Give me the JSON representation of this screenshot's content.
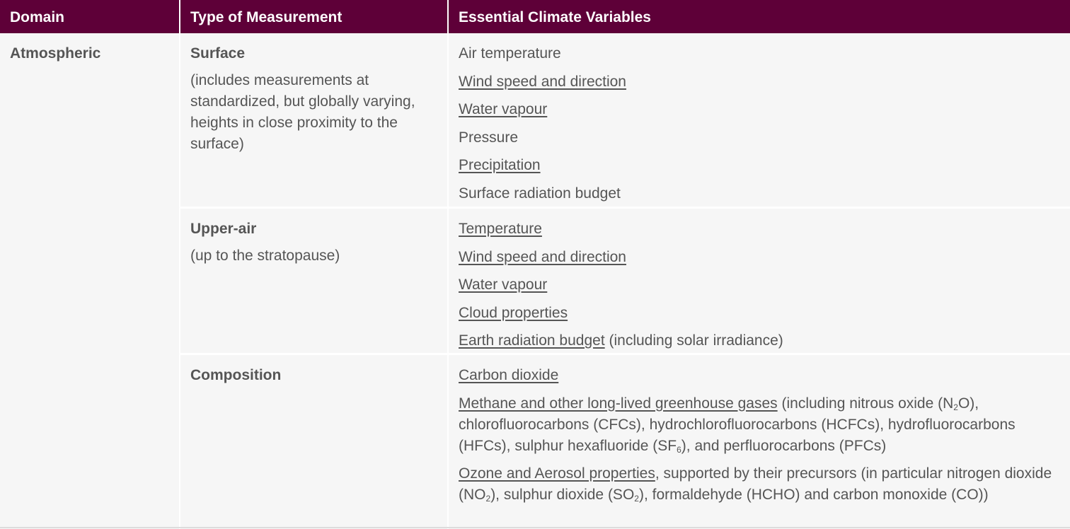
{
  "headers": {
    "domain": "Domain",
    "type": "Type of Measurement",
    "ecv": "Essential Climate Variables"
  },
  "domain": "Atmospheric",
  "rows": [
    {
      "type_title": "Surface",
      "type_sub": "(includes measurements at standardized, but globally varying, heights in close proximity to the surface)",
      "vars": [
        {
          "text": "Air temperature",
          "link": false
        },
        {
          "text": "Wind speed and direction",
          "link": true
        },
        {
          "text": "Water vapour",
          "link": true
        },
        {
          "text": "Pressure",
          "link": false
        },
        {
          "text": "Precipitation",
          "link": true
        },
        {
          "text": "Surface radiation budget",
          "link": false
        }
      ]
    },
    {
      "type_title": "Upper-air",
      "type_sub": "(up to the stratopause)",
      "vars": [
        {
          "text": "Temperature",
          "link": true
        },
        {
          "text": "Wind speed and direction",
          "link": true
        },
        {
          "text": "Water vapour",
          "link": true
        },
        {
          "text": "Cloud properties",
          "link": true
        },
        {
          "text": "Earth radiation budget",
          "link": true,
          "rest": " (including solar irradiance)"
        }
      ]
    },
    {
      "type_title": "Composition",
      "vars": [
        {
          "text": "Carbon dioxide",
          "link": true
        },
        {
          "text": "Methane and other long-lived greenhouse gases",
          "link": true,
          "rest_a": " (including nitrous oxide (N",
          "rest_a_sub": "2",
          "rest_b": "O), chlorofluorocarbons (CFCs), hydrochlorofluorocarbons (HCFCs), hydrofluorocarbons (HFCs), sulphur hexafluoride (SF",
          "rest_b_sub": "6",
          "rest_c": "), and perfluorocarbons (PFCs)"
        },
        {
          "text": "Ozone and Aerosol properties",
          "link": true,
          "rest_a": ", supported by their precursors (in particular nitrogen dioxide (NO",
          "rest_a_sub": "2",
          "rest_b": "), sulphur dioxide (SO",
          "rest_b_sub": "2",
          "rest_c": "), formaldehyde (HCHO) and carbon monoxide (CO))"
        }
      ]
    }
  ],
  "colors": {
    "header_bg": "#5e0038",
    "cell_bg": "#f6f6f6",
    "text": "#555555"
  }
}
